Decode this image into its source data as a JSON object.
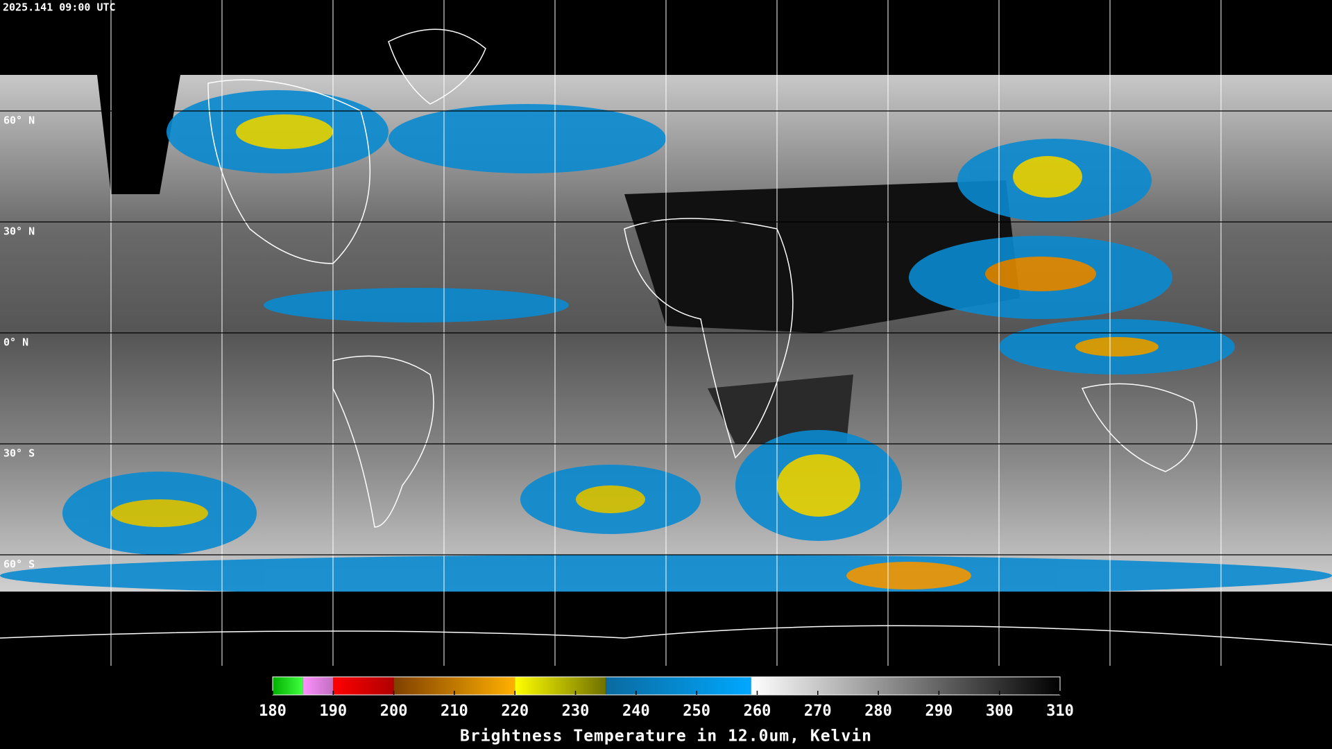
{
  "timestamp": "2025.141 09:00 UTC",
  "map": {
    "lon_lines": [
      -150,
      -120,
      -90,
      -60,
      -30,
      0,
      30,
      60,
      90,
      120,
      150
    ],
    "lat_lines": [
      {
        "value": 60,
        "label": "60° N"
      },
      {
        "value": 30,
        "label": "30° N"
      },
      {
        "value": 0,
        "label": "0° N"
      },
      {
        "value": -30,
        "label": "30° S"
      },
      {
        "value": -60,
        "label": "60° S"
      }
    ]
  },
  "colorbar": {
    "title": "Brightness Temperature in 12.0um, Kelvin",
    "range": [
      180,
      310
    ],
    "ticks": [
      180,
      190,
      200,
      210,
      220,
      230,
      240,
      250,
      260,
      270,
      280,
      290,
      300,
      310
    ],
    "segments": [
      {
        "from": 180,
        "to": 185,
        "colors": [
          "#00b000",
          "#40ff40"
        ]
      },
      {
        "from": 185,
        "to": 190,
        "colors": [
          "#ff90ff",
          "#c070c0"
        ]
      },
      {
        "from": 190,
        "to": 200,
        "colors": [
          "#ff0000",
          "#b00000"
        ]
      },
      {
        "from": 200,
        "to": 220,
        "colors": [
          "#804000",
          "#ffb000"
        ]
      },
      {
        "from": 220,
        "to": 235,
        "colors": [
          "#ffff00",
          "#707000"
        ]
      },
      {
        "from": 235,
        "to": 259,
        "colors": [
          "#0a6aa0",
          "#00a8ff"
        ]
      },
      {
        "from": 259,
        "to": 310,
        "colors": [
          "#ffffff",
          "#000000"
        ]
      }
    ]
  }
}
